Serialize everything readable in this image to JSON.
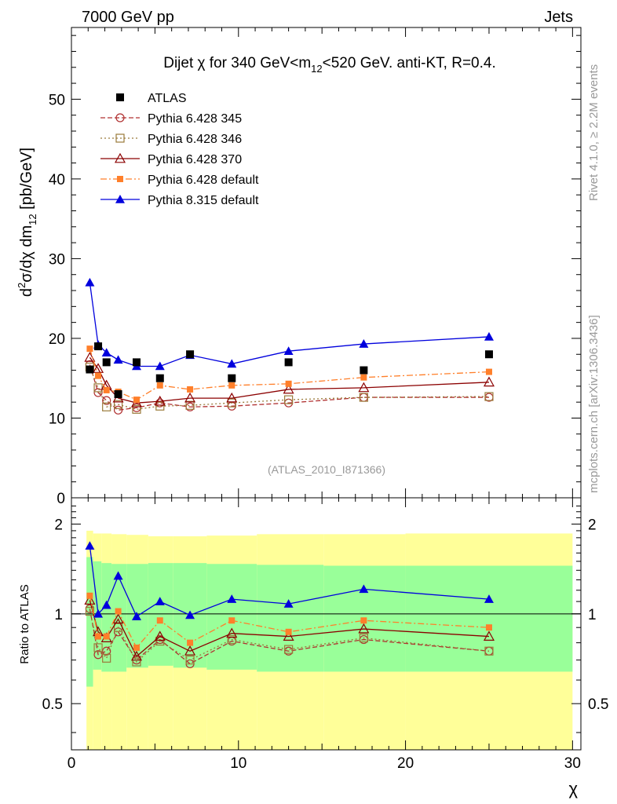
{
  "header": {
    "left": "7000 GeV pp",
    "right": "Jets"
  },
  "title": {
    "part1": "Dijet ",
    "chi": "χ",
    "part2": " for 340 GeV<m",
    "sub": "12",
    "part3": "<520 GeV.  anti-KT, R=0.4."
  },
  "side_labels": {
    "rivet": "Rivet 4.1.0, ≥ 2.2M events",
    "mcplots": "mcplots.cern.ch [arXiv:1306.3436]"
  },
  "analysis_tag": "(ATLAS_2010_I871366)",
  "ylabel_main": {
    "d": "d",
    "sup": "2",
    "rest": "σ/dχ dm",
    "sub": "12",
    "unit": " [pb/GeV]"
  },
  "ylabel_ratio": "Ratio to ATLAS",
  "xlabel": "χ",
  "colors": {
    "band_inner": "#99ff99",
    "band_outer": "#ffff99",
    "data": "#000000"
  },
  "chart_data": [
    {
      "type": "scatter",
      "panel": "main",
      "xlim": [
        0,
        30.5
      ],
      "ylim": [
        0,
        59
      ],
      "x_ticks": [
        "0",
        "10",
        "20",
        "30"
      ],
      "y_ticks": [
        "0",
        "10",
        "20",
        "30",
        "40",
        "50"
      ],
      "legend_position": "top-left",
      "series": [
        {
          "name": "ATLAS",
          "style": "data",
          "color": "#000000",
          "x": [
            1.1,
            1.6,
            2.1,
            2.8,
            3.9,
            5.3,
            7.1,
            9.6,
            13.0,
            17.5,
            25.0
          ],
          "values": [
            16.1,
            19.0,
            17.0,
            13.0,
            17.0,
            15.0,
            18.0,
            15.0,
            17.0,
            16.0,
            18.0
          ]
        },
        {
          "name": "Pythia 6.428 345",
          "style": "open-circle",
          "dash": "6,3",
          "color": "#b03030",
          "x": [
            1.1,
            1.6,
            2.1,
            2.8,
            3.9,
            5.3,
            7.1,
            9.6,
            13.0,
            17.5,
            25.0
          ],
          "values": [
            16.7,
            13.2,
            12.2,
            11.0,
            11.3,
            11.9,
            11.4,
            11.5,
            11.9,
            12.6,
            12.6
          ]
        },
        {
          "name": "Pythia 6.428 346",
          "style": "open-square",
          "dash": "2,3",
          "color": "#9a7a3a",
          "x": [
            1.1,
            1.6,
            2.1,
            2.8,
            3.9,
            5.3,
            7.1,
            9.6,
            13.0,
            17.5,
            25.0
          ],
          "values": [
            16.4,
            13.8,
            11.4,
            11.7,
            11.1,
            11.5,
            11.6,
            11.9,
            12.3,
            12.6,
            12.7
          ]
        },
        {
          "name": "Pythia 6.428 370",
          "style": "open-triangle",
          "dash": "",
          "color": "#8b0000",
          "x": [
            1.1,
            1.6,
            2.1,
            2.8,
            3.9,
            5.3,
            7.1,
            9.6,
            13.0,
            17.5,
            25.0
          ],
          "values": [
            17.6,
            16.2,
            14.1,
            12.5,
            11.9,
            12.1,
            12.5,
            12.5,
            13.6,
            13.8,
            14.5
          ]
        },
        {
          "name": "Pythia 6.428 default",
          "style": "filled-square-small",
          "dash": "8,3,2,3",
          "color": "#ff7f2a",
          "x": [
            1.1,
            1.6,
            2.1,
            2.8,
            3.9,
            5.3,
            7.1,
            9.6,
            13.0,
            17.5,
            25.0
          ],
          "values": [
            18.7,
            15.3,
            13.5,
            13.3,
            12.3,
            14.1,
            13.6,
            14.1,
            14.3,
            15.1,
            15.8
          ]
        },
        {
          "name": "Pythia 8.315 default",
          "style": "filled-triangle",
          "dash": "",
          "color": "#0000dd",
          "x": [
            1.1,
            1.6,
            2.1,
            2.8,
            3.9,
            5.3,
            7.1,
            9.6,
            13.0,
            17.5,
            25.0
          ],
          "values": [
            27.0,
            19.2,
            18.2,
            17.3,
            16.5,
            16.5,
            17.9,
            16.8,
            18.4,
            19.3,
            20.2
          ]
        }
      ]
    },
    {
      "type": "scatter",
      "panel": "ratio",
      "xlim": [
        0,
        30.5
      ],
      "ylim": [
        0.35,
        2.45
      ],
      "log_scale": true,
      "y_ticks": [
        "0.5",
        "1",
        "2"
      ],
      "ylabel": "Ratio to ATLAS",
      "uncertainty_bands": {
        "x_edges": [
          0.9,
          1.3,
          1.8,
          2.4,
          3.3,
          4.6,
          6.1,
          8.1,
          11.1,
          15.1,
          20.0,
          30.0
        ],
        "inner_hi": [
          1.55,
          1.5,
          1.48,
          1.47,
          1.47,
          1.48,
          1.48,
          1.47,
          1.46,
          1.45,
          1.45
        ],
        "inner_lo": [
          0.57,
          0.65,
          0.64,
          0.64,
          0.66,
          0.67,
          0.66,
          0.65,
          0.64,
          0.64,
          0.64
        ],
        "outer_hi": [
          1.9,
          1.86,
          1.86,
          1.85,
          1.84,
          1.82,
          1.82,
          1.83,
          1.85,
          1.85,
          1.86
        ],
        "outer_lo": [
          0.34,
          0.34,
          0.34,
          0.34,
          0.34,
          0.34,
          0.34,
          0.34,
          0.34,
          0.34,
          0.34
        ]
      },
      "series": [
        {
          "name": "Pythia 6.428 345",
          "x": [
            1.1,
            1.6,
            2.1,
            2.8,
            3.9,
            5.3,
            7.1,
            9.6,
            13.0,
            17.5,
            25.0
          ],
          "values": [
            1.04,
            0.73,
            0.75,
            0.87,
            0.7,
            0.82,
            0.68,
            0.81,
            0.75,
            0.82,
            0.75
          ]
        },
        {
          "name": "Pythia 6.428 346",
          "x": [
            1.1,
            1.6,
            2.1,
            2.8,
            3.9,
            5.3,
            7.1,
            9.6,
            13.0,
            17.5,
            25.0
          ],
          "values": [
            1.02,
            0.77,
            0.71,
            0.9,
            0.69,
            0.81,
            0.7,
            0.82,
            0.76,
            0.83,
            0.75
          ]
        },
        {
          "name": "Pythia 6.428 370",
          "x": [
            1.1,
            1.6,
            2.1,
            2.8,
            3.9,
            5.3,
            7.1,
            9.6,
            13.0,
            17.5,
            25.0
          ],
          "values": [
            1.11,
            0.87,
            0.83,
            0.96,
            0.72,
            0.84,
            0.75,
            0.86,
            0.84,
            0.89,
            0.84
          ]
        },
        {
          "name": "Pythia 6.428 default",
          "x": [
            1.1,
            1.6,
            2.1,
            2.8,
            3.9,
            5.3,
            7.1,
            9.6,
            13.0,
            17.5,
            25.0
          ],
          "values": [
            1.15,
            0.84,
            0.84,
            1.02,
            0.77,
            0.95,
            0.8,
            0.95,
            0.87,
            0.95,
            0.9
          ]
        },
        {
          "name": "Pythia 8.315 default",
          "x": [
            1.1,
            1.6,
            2.1,
            2.8,
            3.9,
            5.3,
            7.1,
            9.6,
            13.0,
            17.5,
            25.0
          ],
          "values": [
            1.69,
            1.0,
            1.07,
            1.34,
            0.98,
            1.1,
            0.99,
            1.12,
            1.08,
            1.21,
            1.12
          ]
        }
      ]
    }
  ]
}
